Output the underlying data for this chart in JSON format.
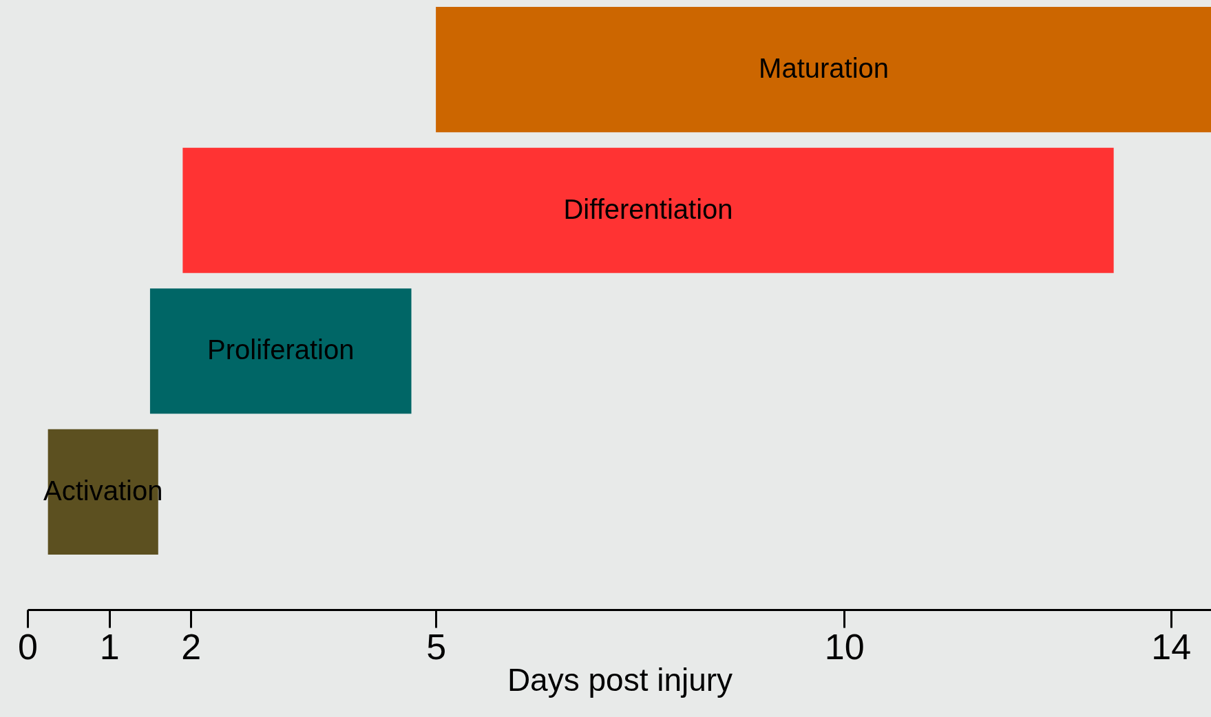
{
  "chart_data": {
    "type": "bar",
    "orientation": "horizontal",
    "xlabel": "Days post injury",
    "categories": [
      "Maturation",
      "Differentiation",
      "Proliferation",
      "Activation"
    ],
    "base": [
      5,
      1.9,
      1.5,
      0.25
    ],
    "values": [
      9.5,
      11.4,
      3.2,
      1.35
    ],
    "colors": [
      "#cc6600",
      "#ff3333",
      "#006666",
      "#5c5020"
    ],
    "xlim": [
      0,
      14.5
    ],
    "xticks": [
      0,
      1,
      2,
      5,
      10,
      14
    ],
    "grid": false
  }
}
